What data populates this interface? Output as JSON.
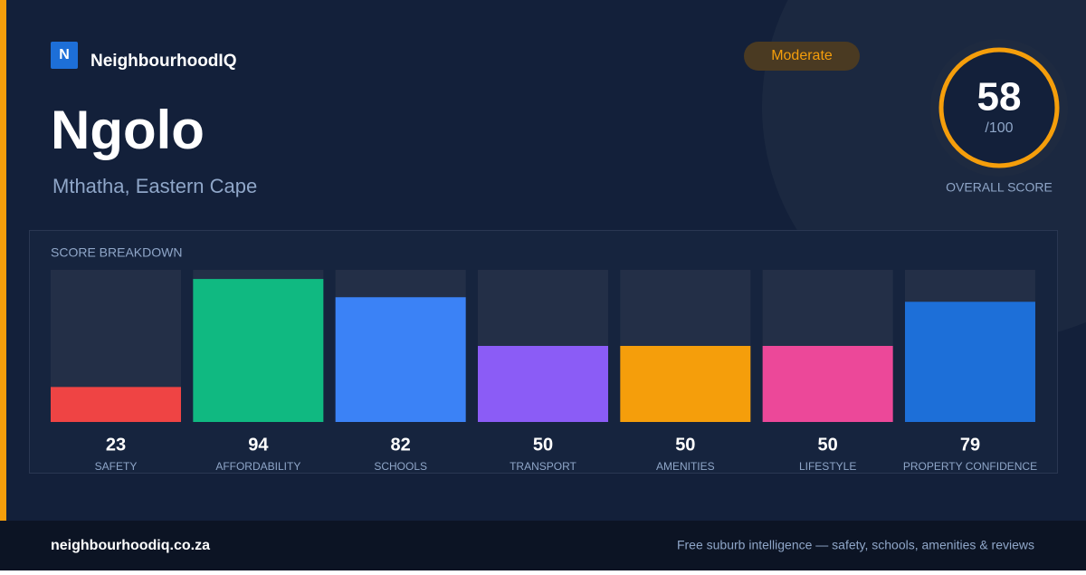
{
  "brand": {
    "logo_letter": "N",
    "name": "NeighbourhoodIQ"
  },
  "header": {
    "title": "Ngolo",
    "subtitle": "Mthatha, Eastern Cape",
    "badge": "Moderate"
  },
  "score": {
    "value": 58,
    "max_label": "/100",
    "caption": "OVERALL SCORE"
  },
  "breakdown": {
    "title": "SCORE BREAKDOWN",
    "chart_data": {
      "type": "bar",
      "categories": [
        "SAFETY",
        "AFFORDABILITY",
        "SCHOOLS",
        "TRANSPORT",
        "AMENITIES",
        "LIFESTYLE",
        "PROPERTY CONFIDENCE"
      ],
      "values": [
        23,
        94,
        82,
        50,
        50,
        50,
        79
      ],
      "colors": [
        "#ef4444",
        "#10b981",
        "#3b82f6",
        "#8b5cf6",
        "#f59e0b",
        "#ec4899",
        "#1d6fd8"
      ],
      "ylim": [
        0,
        100
      ]
    }
  },
  "footer": {
    "url": "neighbourhoodiq.co.za",
    "tagline": "Free suburb intelligence — safety, schools, amenities & reviews"
  }
}
